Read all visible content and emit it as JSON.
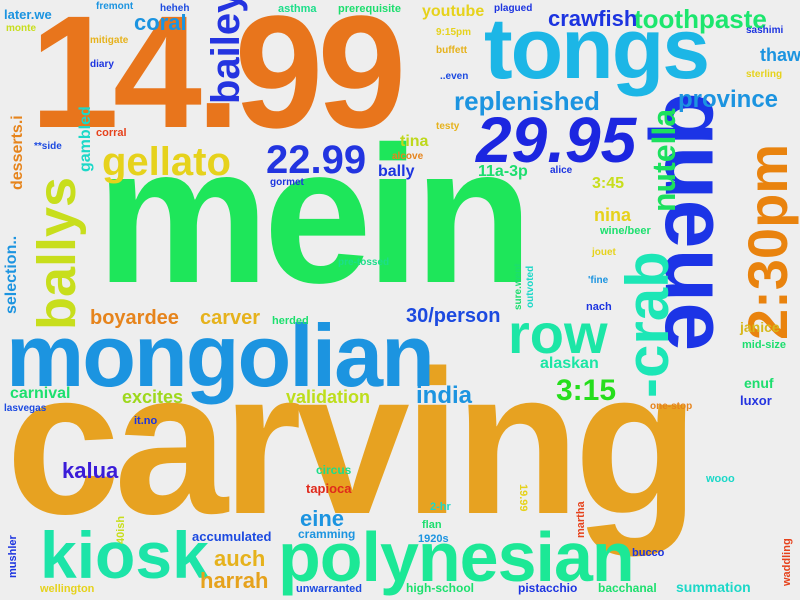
{
  "cloud": {
    "words": [
      {
        "id": "w1",
        "text": "carving",
        "color": "#e7a221"
      },
      {
        "id": "w2",
        "text": "mein",
        "color": "#1ee65a"
      },
      {
        "id": "w3",
        "text": "14.99",
        "color": "#e8751c"
      },
      {
        "id": "w4",
        "text": "mongolian",
        "color": "#1c94e0"
      },
      {
        "id": "w5",
        "text": "tongs",
        "color": "#1cb6e6"
      },
      {
        "id": "w6",
        "text": "polynesian",
        "color": "#1ce896"
      },
      {
        "id": "w7",
        "text": "kiosk",
        "color": "#1ce4a8"
      },
      {
        "id": "w8",
        "text": "queue",
        "color": "#1c34e6"
      },
      {
        "id": "w9",
        "text": "29.95",
        "color": "#1c26e0"
      },
      {
        "id": "w10",
        "text": "2:30pm",
        "color": "#e9830e"
      },
      {
        "id": "w11",
        "text": "-crab",
        "color": "#1ce6b6"
      },
      {
        "id": "w12",
        "text": "row",
        "color": "#1ce6a6"
      },
      {
        "id": "w13",
        "text": "bailey",
        "color": "#2434e0"
      },
      {
        "id": "w14",
        "text": "ballys",
        "color": "#c8de1c"
      },
      {
        "id": "w15",
        "text": "gellato",
        "color": "#e6d21c"
      },
      {
        "id": "w16",
        "text": "22.99",
        "color": "#2234e0"
      },
      {
        "id": "w17",
        "text": "nutella",
        "color": "#1ce05e"
      },
      {
        "id": "w18",
        "text": "replenished",
        "color": "#1c94e0"
      },
      {
        "id": "w19",
        "text": "province",
        "color": "#1c94e0"
      },
      {
        "id": "w20",
        "text": "toothpaste",
        "color": "#1ce66e"
      },
      {
        "id": "w21",
        "text": "crawfish",
        "color": "#1c34e0"
      },
      {
        "id": "w22",
        "text": "coral",
        "color": "#1c94e0"
      },
      {
        "id": "w23",
        "text": "3:15",
        "color": "#26de1c"
      },
      {
        "id": "w24",
        "text": "india",
        "color": "#1c94e0"
      },
      {
        "id": "w25",
        "text": "kalua",
        "color": "#3a1cd8"
      },
      {
        "id": "w26",
        "text": "harrah",
        "color": "#e6a21c"
      },
      {
        "id": "w27",
        "text": "auch",
        "color": "#e6b21c"
      },
      {
        "id": "w28",
        "text": "eine",
        "color": "#1c94e0"
      },
      {
        "id": "w29",
        "text": "boyardee",
        "color": "#e6841c"
      },
      {
        "id": "w30",
        "text": "carver",
        "color": "#e6b21c"
      },
      {
        "id": "w31",
        "text": "30/person",
        "color": "#1c4ae0"
      },
      {
        "id": "w32",
        "text": "validation",
        "color": "#bede1c"
      },
      {
        "id": "w33",
        "text": "excites",
        "color": "#9ed81c"
      },
      {
        "id": "w34",
        "text": "carnival",
        "color": "#1ce06e"
      },
      {
        "id": "w35",
        "text": "alaskan",
        "color": "#1ce6a6"
      },
      {
        "id": "w36",
        "text": "thaw",
        "color": "#1c94e0"
      },
      {
        "id": "w37",
        "text": "nina",
        "color": "#e6d21c"
      },
      {
        "id": "w38",
        "text": "youtube",
        "color": "#e6d21c"
      },
      {
        "id": "w39",
        "text": "11a-3p",
        "color": "#1cde6e"
      },
      {
        "id": "w40",
        "text": "3:45",
        "color": "#c8de1c"
      },
      {
        "id": "w41",
        "text": "tina",
        "color": "#bed81c"
      },
      {
        "id": "w42",
        "text": "bally",
        "color": "#1c34e0"
      },
      {
        "id": "w43",
        "text": "desserts.i",
        "color": "#e6841c"
      },
      {
        "id": "w44",
        "text": "gambled",
        "color": "#1cd8c8"
      },
      {
        "id": "w45",
        "text": "selection..",
        "color": "#1c94e0"
      },
      {
        "id": "w46",
        "text": "janice",
        "color": "#d8b81c"
      },
      {
        "id": "w47",
        "text": "enuf",
        "color": "#1cde6e"
      },
      {
        "id": "w48",
        "text": "luxor",
        "color": "#2434e0"
      },
      {
        "id": "w49",
        "text": "cramming",
        "color": "#1c94e0"
      },
      {
        "id": "w50",
        "text": "accumulated",
        "color": "#1c4ae0"
      },
      {
        "id": "w51",
        "text": "tapioca",
        "color": "#e02a1c"
      },
      {
        "id": "w52",
        "text": "circus",
        "color": "#1cde8a"
      },
      {
        "id": "w53",
        "text": "summation",
        "color": "#1cd8c8"
      },
      {
        "id": "w54",
        "text": "bacchanal",
        "color": "#1ce06e"
      },
      {
        "id": "w55",
        "text": "pistacchio",
        "color": "#1c34e0"
      },
      {
        "id": "w56",
        "text": "high-school",
        "color": "#1ce06e"
      },
      {
        "id": "w57",
        "text": "unwarranted",
        "color": "#1c4ae0"
      },
      {
        "id": "w58",
        "text": "wellington",
        "color": "#e6d21c"
      },
      {
        "id": "w59",
        "text": "mushler",
        "color": "#1c34e0"
      },
      {
        "id": "w60",
        "text": "waddling",
        "color": "#e6421c"
      },
      {
        "id": "w61",
        "text": "bucco",
        "color": "#1c34e0"
      },
      {
        "id": "w62",
        "text": "flan",
        "color": "#1cde6e"
      },
      {
        "id": "w63",
        "text": "1920s",
        "color": "#1c94e0"
      },
      {
        "id": "w64",
        "text": "martha",
        "color": "#e6421c"
      },
      {
        "id": "w65",
        "text": "2-hr",
        "color": "#1cd8c8"
      },
      {
        "id": "w66",
        "text": "19.99",
        "color": "#e6d21c"
      },
      {
        "id": "w67",
        "text": "40ish",
        "color": "#c8de1c"
      },
      {
        "id": "w68",
        "text": "wooo",
        "color": "#1cd8c8"
      },
      {
        "id": "w69",
        "text": "it.no",
        "color": "#1c34e0"
      },
      {
        "id": "w70",
        "text": "lasvegas",
        "color": "#1c4ae0"
      },
      {
        "id": "w71",
        "text": "one-stop",
        "color": "#e6841c"
      },
      {
        "id": "w72",
        "text": "mid-size",
        "color": "#1cde6e"
      },
      {
        "id": "w73",
        "text": "nach",
        "color": "#1c34e0"
      },
      {
        "id": "w74",
        "text": "'fine",
        "color": "#1c94e0"
      },
      {
        "id": "w75",
        "text": "jouet",
        "color": "#e6d21c"
      },
      {
        "id": "w76",
        "text": "outvoted",
        "color": "#1cd8c8"
      },
      {
        "id": "w77",
        "text": "sure.went",
        "color": "#1cde6e"
      },
      {
        "id": "w78",
        "text": "herded",
        "color": "#1ce06e"
      },
      {
        "id": "w79",
        "text": "pre-tossed",
        "color": "#1cde8a"
      },
      {
        "id": "w80",
        "text": "wine/beer",
        "color": "#1ce06e"
      },
      {
        "id": "w81",
        "text": "alice",
        "color": "#1c34e0"
      },
      {
        "id": "w82",
        "text": "gormet",
        "color": "#1c34e0"
      },
      {
        "id": "w83",
        "text": "alcove",
        "color": "#e6841c"
      },
      {
        "id": "w84",
        "text": "testy",
        "color": "#e6b21c"
      },
      {
        "id": "w85",
        "text": "..even",
        "color": "#1c4ae0"
      },
      {
        "id": "w86",
        "text": "buffett",
        "color": "#e6b21c"
      },
      {
        "id": "w87",
        "text": "9:15pm",
        "color": "#e6d21c"
      },
      {
        "id": "w88",
        "text": "plagued",
        "color": "#1c34e0"
      },
      {
        "id": "w89",
        "text": "prerequisite",
        "color": "#1cde6e"
      },
      {
        "id": "w90",
        "text": "asthma",
        "color": "#1cde8a"
      },
      {
        "id": "w91",
        "text": "heheh",
        "color": "#1c4ae0"
      },
      {
        "id": "w92",
        "text": "fremont",
        "color": "#1c94e0"
      },
      {
        "id": "w93",
        "text": "later.we",
        "color": "#1c94e0"
      },
      {
        "id": "w94",
        "text": "monte",
        "color": "#c8de1c"
      },
      {
        "id": "w95",
        "text": "mitigate",
        "color": "#e6b21c"
      },
      {
        "id": "w96",
        "text": "diary",
        "color": "#1c34e0"
      },
      {
        "id": "w97",
        "text": "corral",
        "color": "#e6421c"
      },
      {
        "id": "w98",
        "text": "**side",
        "color": "#1c4ae0"
      },
      {
        "id": "w99",
        "text": "sashimi",
        "color": "#1c34e0"
      },
      {
        "id": "w100",
        "text": "sterling",
        "color": "#e6d21c"
      }
    ]
  }
}
